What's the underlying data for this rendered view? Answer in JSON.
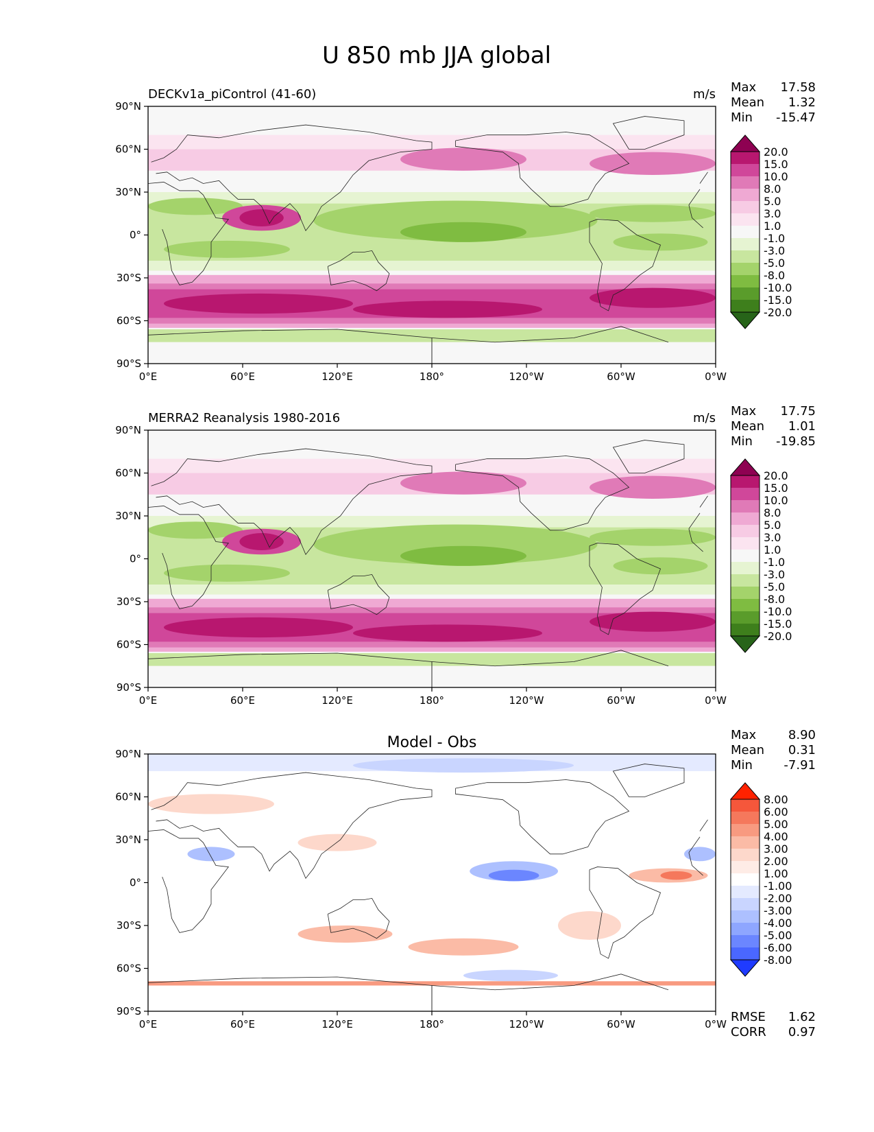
{
  "figure": {
    "title": "U 850 mb JJA global"
  },
  "chart_data": [
    {
      "type": "heatmap",
      "panel": "model",
      "left_title": "DECKv1a_piControl (41-60)",
      "center_title": "",
      "units": "m/s",
      "x_ticks": [
        "0°E",
        "60°E",
        "120°E",
        "180°",
        "120°W",
        "60°W",
        "0°W"
      ],
      "y_ticks": [
        "90°N",
        "60°N",
        "30°N",
        "0°",
        "30°S",
        "60°S",
        "90°S"
      ],
      "xlim": [
        0,
        360
      ],
      "ylim": [
        -90,
        90
      ],
      "stats": [
        {
          "label": "Max",
          "value": "17.58"
        },
        {
          "label": "Mean",
          "value": "1.32"
        },
        {
          "label": "Min",
          "value": "-15.47"
        }
      ],
      "footer_stats": [],
      "colorbar": {
        "levels": [
          "20.0",
          "15.0",
          "10.0",
          "8.0",
          "5.0",
          "3.0",
          "1.0",
          "-1.0",
          "-3.0",
          "-5.0",
          "-8.0",
          "-10.0",
          "-15.0",
          "-20.0"
        ],
        "colors": [
          "#8e0152",
          "#b8176f",
          "#d0479a",
          "#e07ab7",
          "#efa9d3",
          "#f7cbe4",
          "#fbe4f0",
          "#f7f7f7",
          "#e6f4d2",
          "#c8e69f",
          "#a4d36b",
          "#7fbc41",
          "#5a9c2b",
          "#3e7f1c",
          "#276419"
        ]
      }
    },
    {
      "type": "heatmap",
      "panel": "obs",
      "left_title": "MERRA2 Reanalysis 1980-2016",
      "center_title": "",
      "units": "m/s",
      "x_ticks": [
        "0°E",
        "60°E",
        "120°E",
        "180°",
        "120°W",
        "60°W",
        "0°W"
      ],
      "y_ticks": [
        "90°N",
        "60°N",
        "30°N",
        "0°",
        "30°S",
        "60°S",
        "90°S"
      ],
      "xlim": [
        0,
        360
      ],
      "ylim": [
        -90,
        90
      ],
      "stats": [
        {
          "label": "Max",
          "value": "17.75"
        },
        {
          "label": "Mean",
          "value": "1.01"
        },
        {
          "label": "Min",
          "value": "-19.85"
        }
      ],
      "footer_stats": [],
      "colorbar": {
        "levels": [
          "20.0",
          "15.0",
          "10.0",
          "8.0",
          "5.0",
          "3.0",
          "1.0",
          "-1.0",
          "-3.0",
          "-5.0",
          "-8.0",
          "-10.0",
          "-15.0",
          "-20.0"
        ],
        "colors": [
          "#8e0152",
          "#b8176f",
          "#d0479a",
          "#e07ab7",
          "#efa9d3",
          "#f7cbe4",
          "#fbe4f0",
          "#f7f7f7",
          "#e6f4d2",
          "#c8e69f",
          "#a4d36b",
          "#7fbc41",
          "#5a9c2b",
          "#3e7f1c",
          "#276419"
        ]
      }
    },
    {
      "type": "heatmap",
      "panel": "diff",
      "left_title": "",
      "center_title": "Model - Obs",
      "units": "",
      "x_ticks": [
        "0°E",
        "60°E",
        "120°E",
        "180°",
        "120°W",
        "60°W",
        "0°W"
      ],
      "y_ticks": [
        "90°N",
        "60°N",
        "30°N",
        "0°",
        "30°S",
        "60°S",
        "90°S"
      ],
      "xlim": [
        0,
        360
      ],
      "ylim": [
        -90,
        90
      ],
      "stats": [
        {
          "label": "Max",
          "value": "8.90"
        },
        {
          "label": "Mean",
          "value": "0.31"
        },
        {
          "label": "Min",
          "value": "-7.91"
        }
      ],
      "footer_stats": [
        {
          "label": "RMSE",
          "value": "1.62"
        },
        {
          "label": "CORR",
          "value": "0.97"
        }
      ],
      "colorbar": {
        "levels": [
          "8.00",
          "6.00",
          "5.00",
          "4.00",
          "3.00",
          "2.00",
          "1.00",
          "-1.00",
          "-2.00",
          "-3.00",
          "-4.00",
          "-5.00",
          "-6.00",
          "-8.00"
        ],
        "colors": [
          "#ff2200",
          "#f5573b",
          "#f5785c",
          "#f89a80",
          "#fbbba6",
          "#fdd8cb",
          "#feece6",
          "#ffffff",
          "#e4eaff",
          "#c9d5ff",
          "#adc0ff",
          "#8ea6ff",
          "#6b86ff",
          "#4a67ff",
          "#1f3bff"
        ]
      }
    }
  ]
}
